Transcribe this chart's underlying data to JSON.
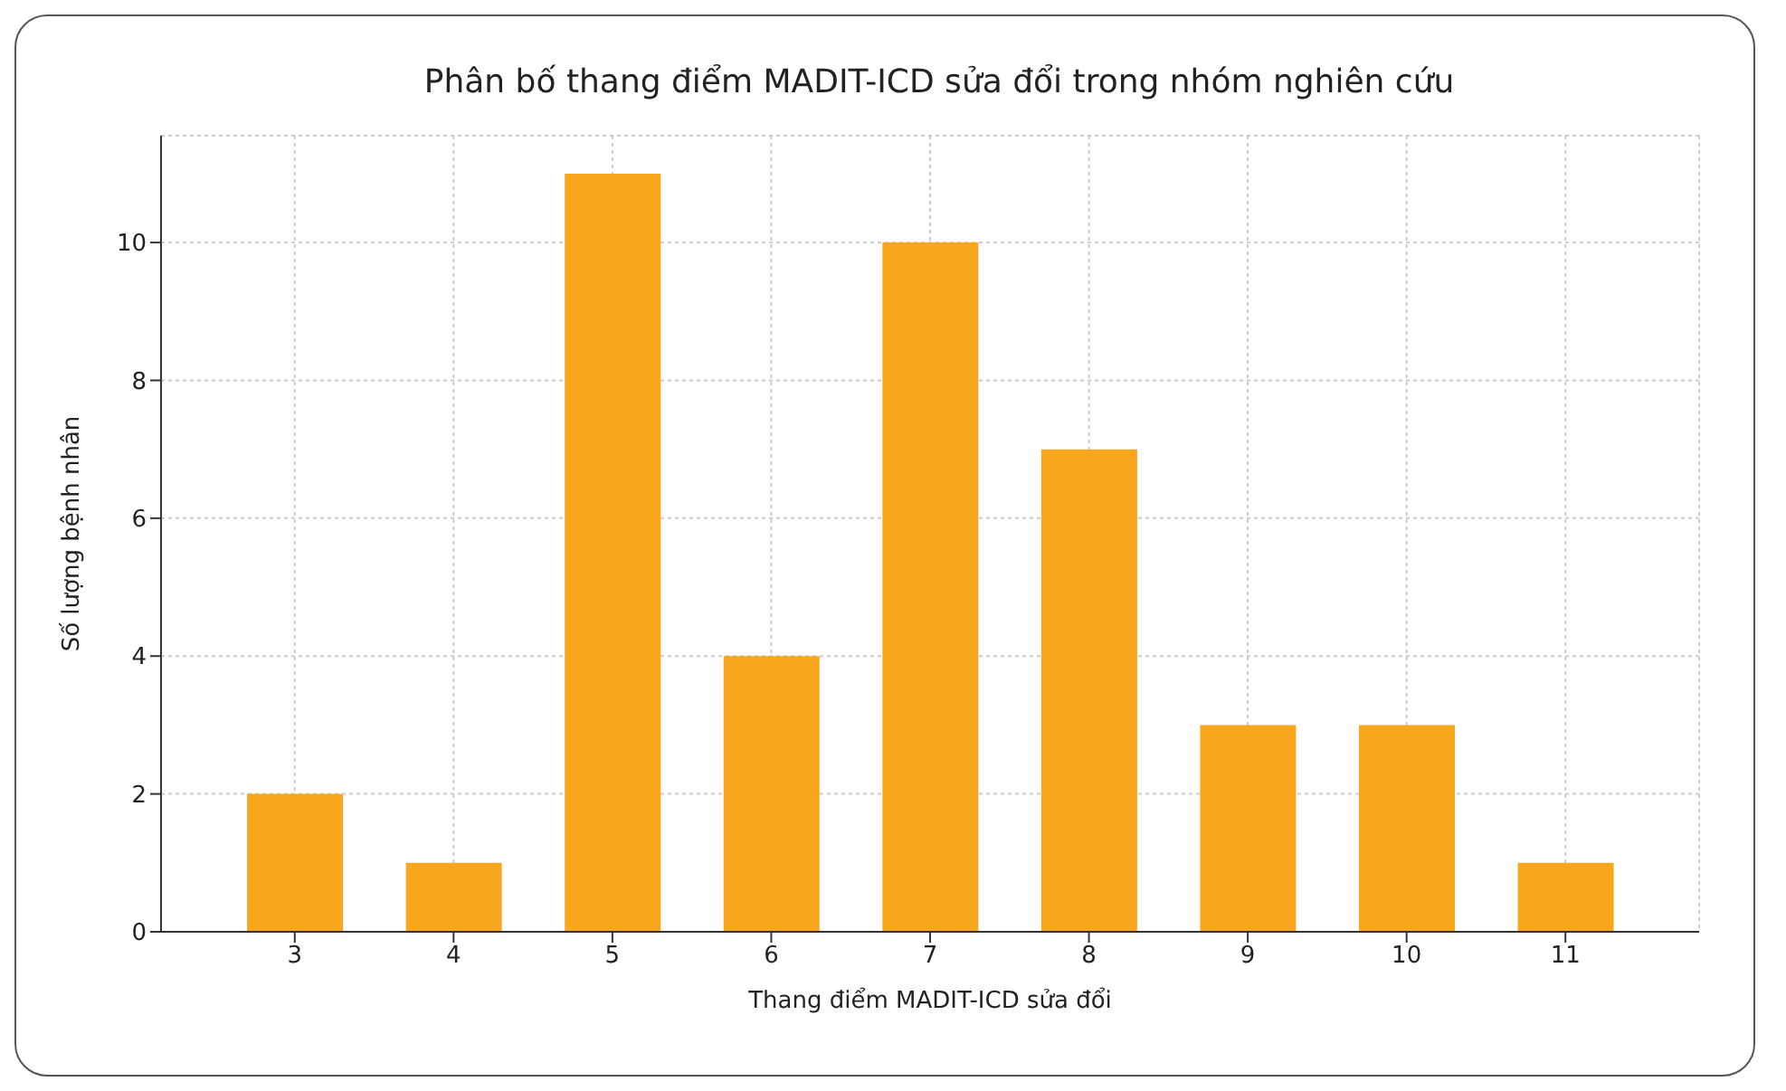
{
  "chart_data": {
    "type": "bar",
    "title": "Phân bố thang điểm MADIT-ICD sửa đổi trong nhóm nghiên cứu",
    "xlabel": "Thang điểm MADIT-ICD sửa đổi",
    "ylabel": "Số lượng bệnh nhân",
    "categories": [
      "3",
      "4",
      "5",
      "6",
      "7",
      "8",
      "9",
      "10",
      "11"
    ],
    "values": [
      2,
      1,
      11,
      4,
      10,
      7,
      3,
      3,
      1
    ],
    "color": "#f8a61c",
    "ylim": [
      0,
      11.55
    ],
    "yticks": [
      0,
      2,
      4,
      6,
      8,
      10
    ],
    "grid": true
  }
}
